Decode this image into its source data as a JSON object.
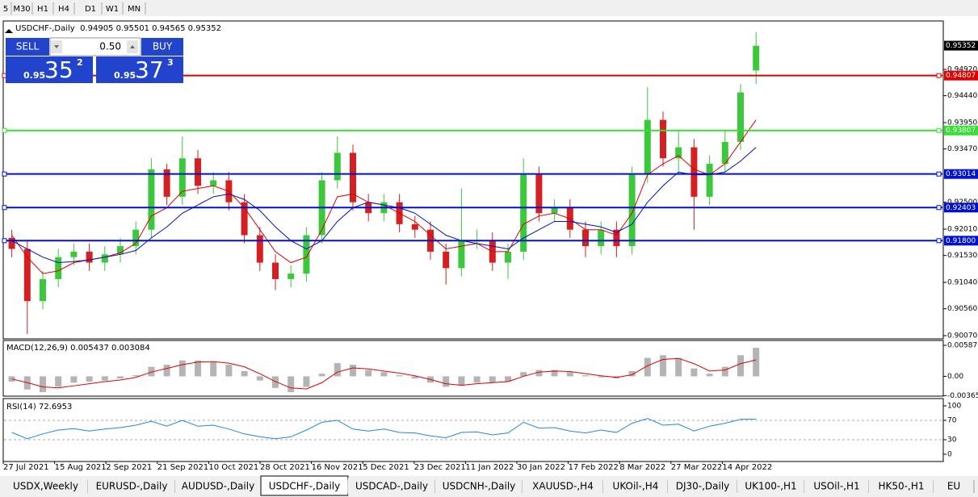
{
  "toolbar": {
    "timeframes": [
      "5",
      "M30",
      "H1",
      "H4",
      "D1",
      "W1",
      "MN"
    ]
  },
  "header": "USDCHF-,Daily  0.94905 0.95501 0.94565 0.95352",
  "trade_panel": {
    "sell": "SELL",
    "buy": "BUY",
    "lot": "0.50",
    "sell_quote": {
      "big_figure": "0.95",
      "pips": "35",
      "fraction": "2"
    },
    "buy_quote": {
      "big_figure": "0.95",
      "pips": "37",
      "fraction": "3"
    }
  },
  "chart_data": {
    "type": "candlestick",
    "ylim": [
      0.90041,
      0.95772
    ],
    "yticks": [
      {
        "value": 0.9492,
        "label": "0.94920"
      },
      {
        "value": 0.9444,
        "label": "0.94440"
      },
      {
        "value": 0.9395,
        "label": "0.93950"
      },
      {
        "value": 0.9347,
        "label": "0.93470"
      },
      {
        "value": 0.925,
        "label": "0.92500"
      },
      {
        "value": 0.9201,
        "label": "0.92010"
      },
      {
        "value": 0.9153,
        "label": "0.91530"
      },
      {
        "value": 0.9104,
        "label": "0.91040"
      },
      {
        "value": 0.9056,
        "label": "0.90560"
      },
      {
        "value": 0.9007,
        "label": "0.90070"
      }
    ],
    "current_price": {
      "value": 0.95352,
      "label": "0.95352"
    },
    "levels": [
      {
        "value": 0.94807,
        "label": "0.94807",
        "color": "#e00000"
      },
      {
        "value": 0.93807,
        "label": "0.93807",
        "color": "#33e033"
      },
      {
        "value": 0.93014,
        "label": "0.93014",
        "color": "#0010d0"
      },
      {
        "value": 0.92403,
        "label": "0.92403",
        "color": "#0010d0"
      },
      {
        "value": 0.918,
        "label": "0.91800",
        "color": "#0010d0"
      }
    ],
    "up_color": "#3cc83c",
    "down_color": "#d42020",
    "open": [
      0.9185,
      0.9165,
      0.907,
      0.911,
      0.915,
      0.916,
      0.914,
      0.9155,
      0.917,
      0.92,
      0.931,
      0.926,
      0.933,
      0.928,
      0.929,
      0.925,
      0.919,
      0.914,
      0.911,
      0.912,
      0.919,
      0.929,
      0.934,
      0.925,
      0.923,
      0.925,
      0.921,
      0.92,
      0.916,
      0.913,
      0.918,
      0.918,
      0.914,
      0.916,
      0.93,
      0.923,
      0.924,
      0.92,
      0.917,
      0.92,
      0.917,
      0.93,
      0.94,
      0.933,
      0.935,
      0.926,
      0.932,
      0.936,
      0.949
    ],
    "high": [
      0.92,
      0.918,
      0.9125,
      0.9165,
      0.9175,
      0.9175,
      0.917,
      0.9185,
      0.9215,
      0.933,
      0.932,
      0.937,
      0.9345,
      0.9305,
      0.9305,
      0.9265,
      0.9205,
      0.9155,
      0.9135,
      0.9205,
      0.9305,
      0.937,
      0.9355,
      0.9265,
      0.9265,
      0.9265,
      0.9225,
      0.9215,
      0.9175,
      0.9275,
      0.92,
      0.9195,
      0.9175,
      0.933,
      0.9315,
      0.9255,
      0.9255,
      0.9215,
      0.9215,
      0.9215,
      0.9315,
      0.946,
      0.9415,
      0.938,
      0.9365,
      0.9335,
      0.938,
      0.9465,
      0.956
    ],
    "low": [
      0.915,
      0.901,
      0.9055,
      0.9095,
      0.9135,
      0.9125,
      0.9125,
      0.914,
      0.9155,
      0.9185,
      0.9245,
      0.9245,
      0.9265,
      0.9265,
      0.9235,
      0.9175,
      0.9125,
      0.909,
      0.9095,
      0.9105,
      0.9175,
      0.9275,
      0.9235,
      0.9215,
      0.9215,
      0.9195,
      0.9185,
      0.9145,
      0.91,
      0.9115,
      0.9165,
      0.9125,
      0.911,
      0.9145,
      0.9215,
      0.9215,
      0.9185,
      0.915,
      0.9155,
      0.915,
      0.9155,
      0.9285,
      0.9315,
      0.9305,
      0.92,
      0.9245,
      0.9305,
      0.9345,
      0.9465
    ],
    "close": [
      0.9165,
      0.907,
      0.911,
      0.915,
      0.916,
      0.914,
      0.9155,
      0.917,
      0.92,
      0.931,
      0.926,
      0.933,
      0.928,
      0.929,
      0.925,
      0.919,
      0.914,
      0.911,
      0.912,
      0.919,
      0.929,
      0.934,
      0.925,
      0.923,
      0.925,
      0.921,
      0.92,
      0.916,
      0.913,
      0.918,
      0.918,
      0.914,
      0.916,
      0.93,
      0.923,
      0.924,
      0.92,
      0.917,
      0.92,
      0.917,
      0.93,
      0.94,
      0.933,
      0.935,
      0.926,
      0.932,
      0.936,
      0.945,
      0.9535
    ],
    "ma_fast": {
      "color": "#e00000",
      "values": [
        0.919,
        0.915,
        0.912,
        0.9125,
        0.914,
        0.9145,
        0.915,
        0.9158,
        0.9175,
        0.9225,
        0.924,
        0.927,
        0.9275,
        0.928,
        0.927,
        0.924,
        0.92,
        0.916,
        0.914,
        0.915,
        0.92,
        0.926,
        0.9265,
        0.925,
        0.9245,
        0.923,
        0.9215,
        0.919,
        0.9165,
        0.917,
        0.9175,
        0.916,
        0.916,
        0.921,
        0.9225,
        0.923,
        0.922,
        0.92,
        0.92,
        0.919,
        0.923,
        0.93,
        0.932,
        0.9335,
        0.931,
        0.93,
        0.932,
        0.936,
        0.94
      ]
    },
    "ma_slow": {
      "color": "#0010c0",
      "values": [
        0.918,
        0.9165,
        0.915,
        0.914,
        0.9142,
        0.9145,
        0.915,
        0.9155,
        0.9162,
        0.9185,
        0.9205,
        0.923,
        0.9245,
        0.926,
        0.9265,
        0.9255,
        0.9235,
        0.9205,
        0.918,
        0.9165,
        0.918,
        0.9215,
        0.924,
        0.925,
        0.9245,
        0.924,
        0.923,
        0.921,
        0.919,
        0.918,
        0.9175,
        0.917,
        0.9165,
        0.9185,
        0.92,
        0.9215,
        0.9215,
        0.921,
        0.9205,
        0.9195,
        0.921,
        0.925,
        0.928,
        0.9305,
        0.93,
        0.93,
        0.9305,
        0.9325,
        0.935
      ]
    },
    "x_labels": [
      "27 Jul 2021",
      "15 Aug 2021",
      "2 Sep 2021",
      "21 Sep 2021",
      "10 Oct 2021",
      "28 Oct 2021",
      "16 Nov 2021",
      "5 Dec 2021",
      "23 Dec 2021",
      "11 Jan 2022",
      "30 Jan 2022",
      "17 Feb 2022",
      "8 Mar 2022",
      "27 Mar 2022",
      "14 Apr 2022"
    ]
  },
  "macd": {
    "label": "MACD(12,26,9) 0.005437 0.003084",
    "ylim": [
      -0.00376,
      0.00649
    ],
    "yticks": [
      0.00587,
      {
        "value": 0,
        "label": "0.00"
      },
      -0.003659
    ],
    "hist_color": "#b4b4b4",
    "signal_color": "#e00000",
    "histogram": [
      -0.001,
      -0.0025,
      -0.003,
      -0.002,
      -0.0012,
      -0.001,
      -0.0008,
      -0.0004,
      0.0002,
      0.0018,
      0.0022,
      0.003,
      0.003,
      0.0028,
      0.0022,
      0.001,
      -0.0008,
      -0.0022,
      -0.003,
      -0.002,
      0.0005,
      0.0025,
      0.0022,
      0.0012,
      0.0008,
      0.0002,
      -0.0004,
      -0.0012,
      -0.002,
      -0.0018,
      -0.0012,
      -0.0012,
      -0.001,
      0.0008,
      0.0012,
      0.0012,
      0.0008,
      0.0002,
      -0.0002,
      -0.0004,
      0.001,
      0.0035,
      0.004,
      0.0035,
      0.0015,
      0.0005,
      0.0018,
      0.004,
      0.0054
    ],
    "signal": [
      -0.0005,
      -0.0012,
      -0.002,
      -0.0022,
      -0.0018,
      -0.0014,
      -0.001,
      -0.0007,
      -0.0002,
      0.0008,
      0.0015,
      0.0022,
      0.0027,
      0.0028,
      0.0025,
      0.0018,
      0.0005,
      -0.001,
      -0.0022,
      -0.0024,
      -0.0012,
      0.0008,
      0.0016,
      0.0014,
      0.001,
      0.0006,
      0.0001,
      -0.0006,
      -0.0014,
      -0.0017,
      -0.0014,
      -0.0012,
      -0.001,
      0,
      0.0008,
      0.001,
      0.0009,
      0.0005,
      0.0001,
      -0.0002,
      0.0003,
      0.002,
      0.0032,
      0.0034,
      0.0024,
      0.001,
      0.0012,
      0.0024,
      0.0031
    ]
  },
  "rsi": {
    "label": "RSI(14) 72.6953",
    "ylim": [
      -15,
      110
    ],
    "yticks": [
      100,
      70,
      30,
      0
    ],
    "levels": [
      70,
      30
    ],
    "color": "#1e88e5",
    "values": [
      45,
      32,
      42,
      50,
      53,
      48,
      52,
      55,
      60,
      68,
      58,
      70,
      58,
      60,
      52,
      42,
      36,
      32,
      36,
      50,
      66,
      70,
      52,
      48,
      52,
      45,
      44,
      38,
      34,
      45,
      46,
      40,
      44,
      66,
      54,
      55,
      48,
      44,
      50,
      45,
      64,
      74,
      60,
      62,
      48,
      58,
      64,
      72,
      72.6953
    ]
  },
  "tabs": {
    "active": 3,
    "items": [
      "USDX,Weekly",
      "EURUSD-,Daily",
      "AUDUSD-,Daily",
      "USDCHF-,Daily",
      "USDCAD-,Daily",
      "USDCNH-,Daily",
      "XAUUSD-,H4",
      "UKOil-,H4",
      "DJ30-,Daily",
      "UK100-,H1",
      "USOil-,H1",
      "HK50-,H1",
      "EU"
    ]
  }
}
